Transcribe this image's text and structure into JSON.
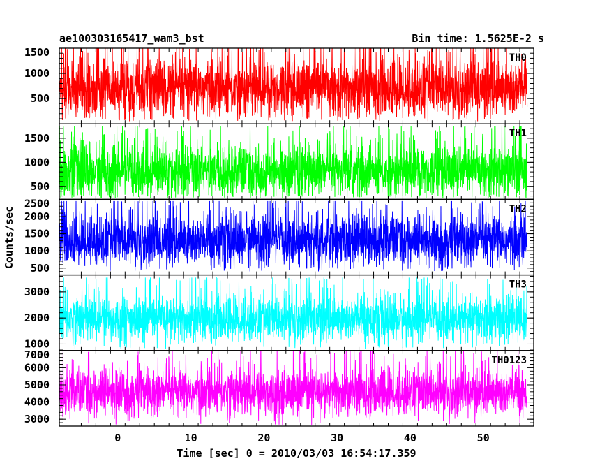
{
  "chart_data": {
    "type": "line",
    "title_left": "ae100303165417_wam3_bst",
    "title_right": "Bin time: 1.5625E-2 s",
    "ylabel": "Counts/sec",
    "xlabel": "Time [sec] 0 = 2010/03/03 16:54:17.359",
    "xlim": [
      -8.0,
      56.9
    ],
    "xticks": [
      0,
      10,
      20,
      30,
      40,
      50
    ],
    "bin_time_s": 0.015625,
    "panels": [
      {
        "label": "TH0",
        "color": "#ff0000",
        "ylim": [
          0,
          1500
        ],
        "yticks": [
          500,
          1000,
          1500
        ],
        "mean": 700,
        "std": 300,
        "min": 50,
        "max": 1500
      },
      {
        "label": "TH1",
        "color": "#00ff00",
        "ylim": [
          230,
          1800
        ],
        "yticks": [
          500,
          1000,
          1500
        ],
        "mean": 800,
        "std": 280,
        "min": 250,
        "max": 1750
      },
      {
        "label": "TH2",
        "color": "#0000ff",
        "ylim": [
          300,
          2500
        ],
        "yticks": [
          500,
          1000,
          1500,
          2000,
          2500
        ],
        "mean": 1300,
        "std": 380,
        "min": 400,
        "max": 2450
      },
      {
        "label": "TH3",
        "color": "#00ffff",
        "ylim": [
          750,
          3650
        ],
        "yticks": [
          1000,
          2000,
          3000
        ],
        "mean": 1950,
        "std": 450,
        "min": 800,
        "max": 3550
      },
      {
        "label": "TH0123",
        "color": "#ff00ff",
        "ylim": [
          2600,
          7000
        ],
        "yticks": [
          3000,
          4000,
          5000,
          6000,
          7000
        ],
        "mean": 4550,
        "std": 700,
        "min": 2650,
        "max": 6950
      }
    ]
  }
}
